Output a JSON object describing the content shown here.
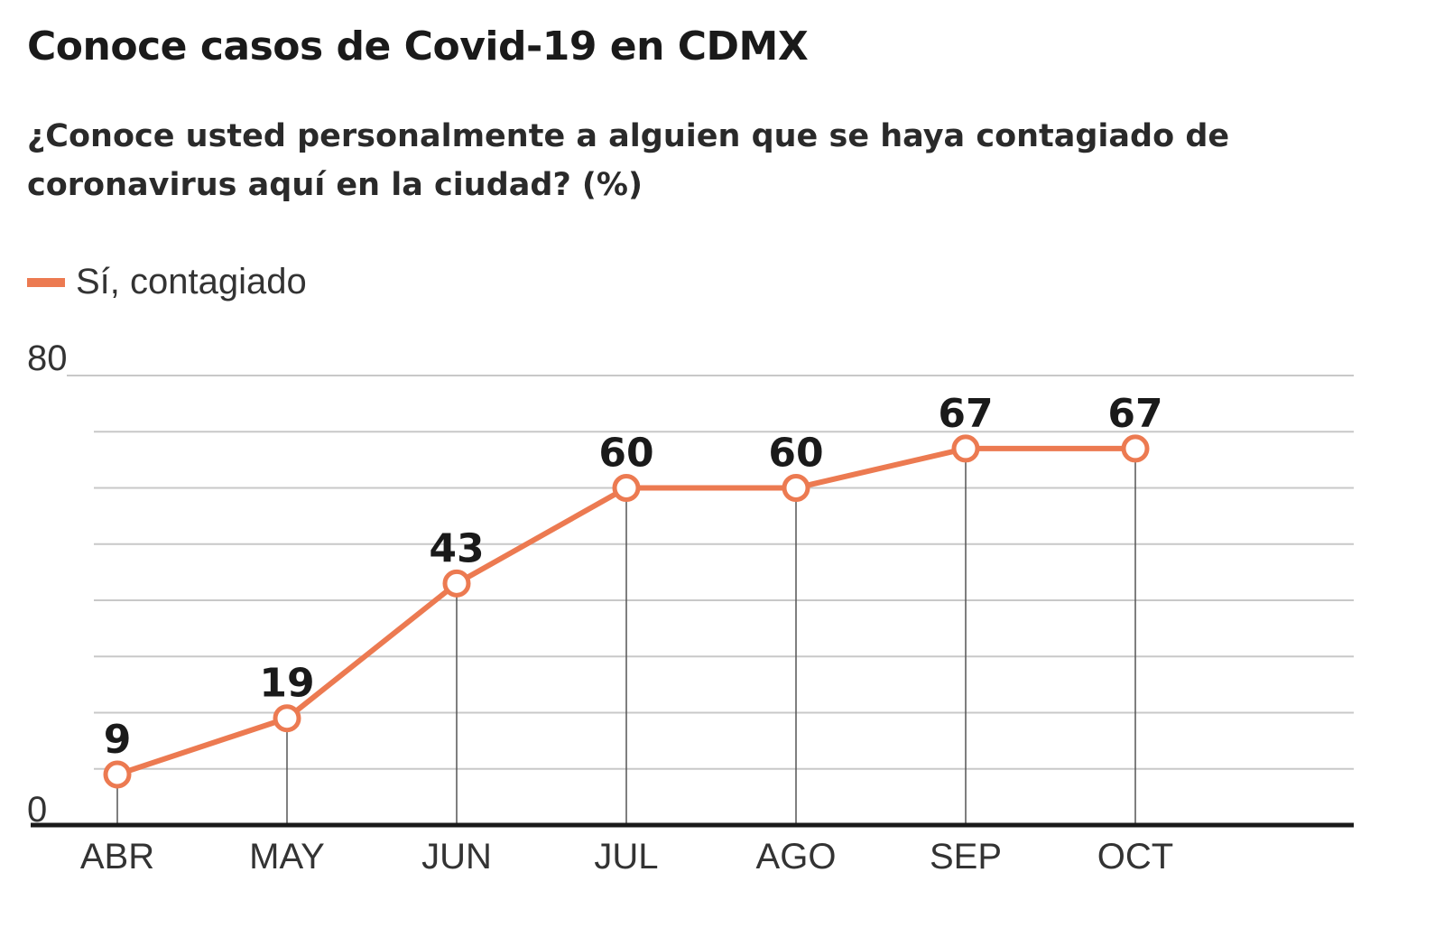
{
  "title": "Conoce casos de Covid-19 en CDMX",
  "subtitle": "¿Conoce usted personalmente a alguien que se haya contagiado de coronavirus aquí en la ciudad? (%)",
  "colors": {
    "series": "#ec7a51",
    "grid": "#c8c8c8",
    "axis": "#1a1a1a",
    "text": "#1a1a1a"
  },
  "chart_data": {
    "type": "line",
    "categories": [
      "ABR",
      "MAY",
      "JUN",
      "JUL",
      "AGO",
      "SEP",
      "OCT"
    ],
    "series": [
      {
        "name": "Sí, contagiado",
        "values": [
          9,
          19,
          43,
          60,
          60,
          67,
          67
        ]
      }
    ],
    "ylim": [
      0,
      80
    ],
    "y_tick_labels": [
      "0",
      "80"
    ],
    "grid": true,
    "legend_position": "top-left",
    "data_labels": true
  }
}
